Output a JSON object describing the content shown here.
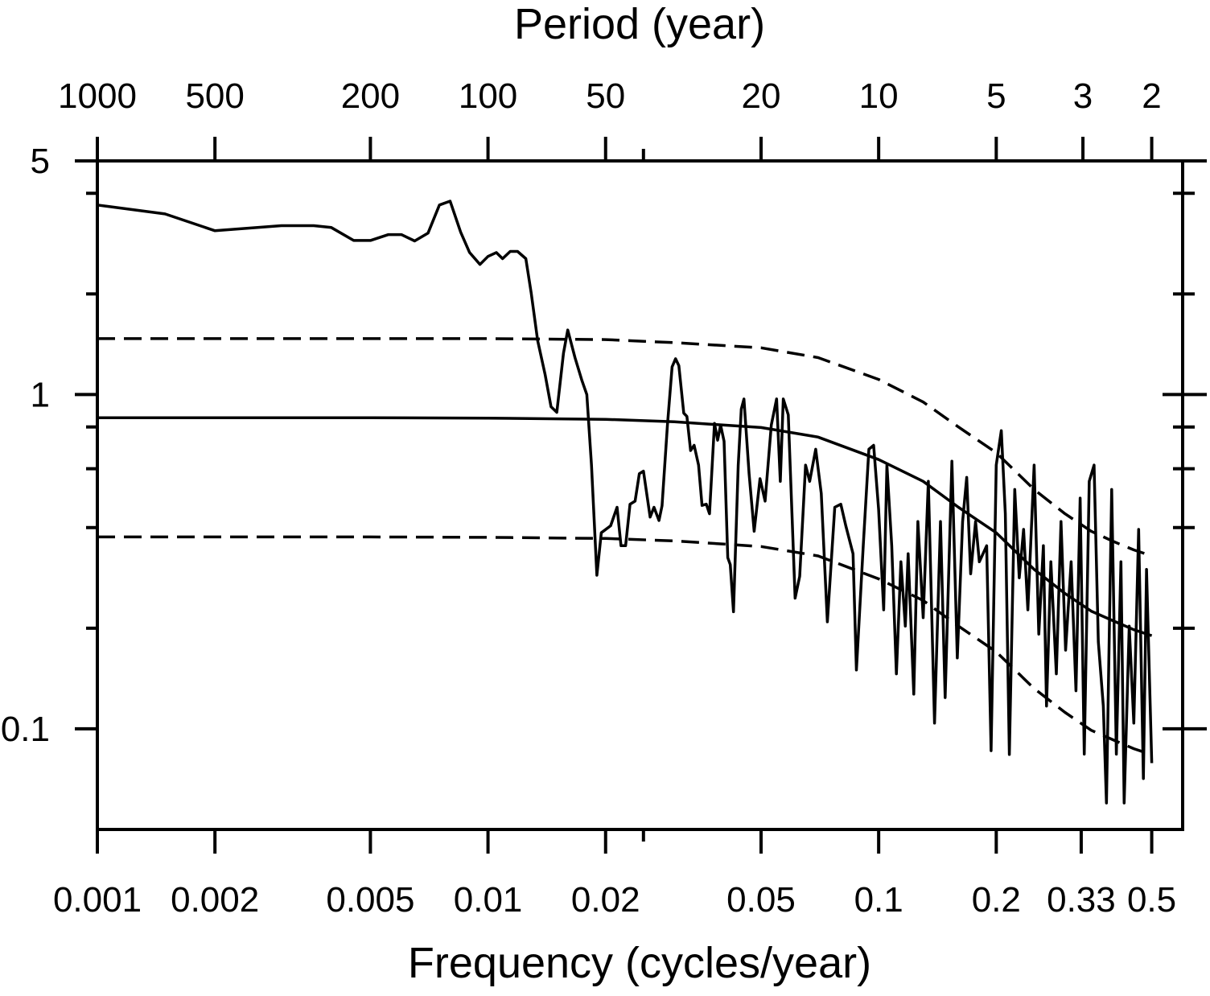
{
  "chart_data": {
    "type": "line",
    "xlabel": "Frequency (cycles/year)",
    "x2label": "Period (year)",
    "xscale": "log",
    "yscale": "log",
    "xlim": [
      0.001,
      0.6
    ],
    "ylim": [
      0.05,
      5
    ],
    "xticks": [
      0.001,
      0.002,
      0.005,
      0.01,
      0.02,
      0.05,
      0.1,
      0.2,
      0.33,
      0.5
    ],
    "xminorticks": [
      0.025
    ],
    "x2ticks": [
      1000,
      500,
      200,
      100,
      50,
      20,
      10,
      5,
      3,
      2
    ],
    "yticks": [
      5,
      1,
      0.1
    ],
    "yminorticks": [
      4,
      2,
      0.8,
      0.6,
      0.4,
      0.2
    ],
    "series": [
      {
        "color": "#000000",
        "dash": false,
        "x": [
          0.001,
          0.00149,
          0.002,
          0.00296,
          0.00358,
          0.00397,
          0.00453,
          0.005,
          0.00556,
          0.006,
          0.00649,
          0.00702,
          0.00751,
          0.008,
          0.00851,
          0.00897,
          0.00954,
          0.01,
          0.0105,
          0.0109,
          0.0114,
          0.0119,
          0.0125,
          0.0129,
          0.0134,
          0.014,
          0.0145,
          0.015,
          0.0156,
          0.016,
          0.0167,
          0.0174,
          0.0179,
          0.0184,
          0.019,
          0.0195,
          0.0206,
          0.0214,
          0.0219,
          0.0225,
          0.0231,
          0.0238,
          0.0244,
          0.025,
          0.026,
          0.0266,
          0.0274,
          0.0279,
          0.0288,
          0.0296,
          0.0302,
          0.0308,
          0.0317,
          0.0323,
          0.033,
          0.0337,
          0.0346,
          0.0353,
          0.0362,
          0.0369,
          0.038,
          0.0387,
          0.0394,
          0.0402,
          0.0411,
          0.0417,
          0.0425,
          0.0437,
          0.0445,
          0.0452,
          0.0466,
          0.048,
          0.0497,
          0.0512,
          0.0531,
          0.0548,
          0.056,
          0.057,
          0.0587,
          0.06,
          0.0611,
          0.0628,
          0.065,
          0.0666,
          0.069,
          0.0713,
          0.0739,
          0.0772,
          0.08,
          0.0824,
          0.086,
          0.0877,
          0.0913,
          0.0944,
          0.0971,
          0.1,
          0.103,
          0.105,
          0.108,
          0.111,
          0.114,
          0.117,
          0.119,
          0.123,
          0.126,
          0.13,
          0.134,
          0.139,
          0.144,
          0.148,
          0.154,
          0.159,
          0.164,
          0.168,
          0.172,
          0.177,
          0.181,
          0.189,
          0.194,
          0.2,
          0.206,
          0.211,
          0.216,
          0.223,
          0.229,
          0.235,
          0.241,
          0.25,
          0.257,
          0.264,
          0.269,
          0.276,
          0.285,
          0.293,
          0.301,
          0.311,
          0.32,
          0.328,
          0.336,
          0.346,
          0.356,
          0.365,
          0.376,
          0.383,
          0.395,
          0.406,
          0.417,
          0.425,
          0.438,
          0.45,
          0.463,
          0.476,
          0.485,
          0.5
        ],
        "values": [
          3.69,
          3.47,
          3.09,
          3.2,
          3.2,
          3.16,
          2.89,
          2.89,
          3.01,
          3.01,
          2.88,
          3.04,
          3.69,
          3.79,
          3.06,
          2.66,
          2.45,
          2.59,
          2.66,
          2.55,
          2.68,
          2.68,
          2.55,
          2.01,
          1.45,
          1.15,
          0.92,
          0.885,
          1.33,
          1.56,
          1.29,
          1.1,
          1.0,
          0.615,
          0.288,
          0.386,
          0.405,
          0.46,
          0.353,
          0.353,
          0.47,
          0.48,
          0.58,
          0.59,
          0.43,
          0.46,
          0.42,
          0.465,
          0.81,
          1.21,
          1.28,
          1.22,
          0.88,
          0.86,
          0.68,
          0.705,
          0.615,
          0.466,
          0.47,
          0.44,
          0.82,
          0.73,
          0.81,
          0.725,
          0.325,
          0.31,
          0.224,
          0.615,
          0.905,
          0.97,
          0.58,
          0.39,
          0.56,
          0.48,
          0.81,
          0.97,
          0.55,
          0.97,
          0.87,
          0.44,
          0.246,
          0.286,
          0.615,
          0.55,
          0.686,
          0.506,
          0.209,
          0.46,
          0.47,
          0.405,
          0.334,
          0.15,
          0.353,
          0.686,
          0.705,
          0.453,
          0.227,
          0.615,
          0.353,
          0.146,
          0.316,
          0.203,
          0.334,
          0.127,
          0.417,
          0.215,
          0.55,
          0.104,
          0.417,
          0.124,
          0.632,
          0.163,
          0.417,
          0.565,
          0.291,
          0.417,
          0.316,
          0.353,
          0.086,
          0.615,
          0.78,
          0.44,
          0.0838,
          0.52,
          0.283,
          0.395,
          0.227,
          0.615,
          0.192,
          0.353,
          0.117,
          0.316,
          0.146,
          0.417,
          0.172,
          0.316,
          0.13,
          0.49,
          0.084,
          0.55,
          0.615,
          0.182,
          0.117,
          0.06,
          0.52,
          0.084,
          0.316,
          0.06,
          0.203,
          0.104,
          0.395,
          0.071,
          0.3,
          0.079
        ]
      },
      {
        "color": "#000000",
        "dash": false,
        "x": [
          0.001,
          0.005,
          0.01,
          0.02,
          0.03,
          0.05,
          0.07,
          0.1,
          0.13,
          0.16,
          0.2,
          0.25,
          0.3,
          0.35,
          0.4,
          0.45,
          0.5
        ],
        "values": [
          0.852,
          0.852,
          0.85,
          0.843,
          0.829,
          0.797,
          0.746,
          0.639,
          0.55,
          0.46,
          0.386,
          0.3,
          0.254,
          0.225,
          0.21,
          0.198,
          0.19
        ]
      },
      {
        "color": "#000000",
        "dash": true,
        "x": [
          0.001,
          0.005,
          0.01,
          0.02,
          0.03,
          0.05,
          0.07,
          0.1,
          0.13,
          0.16,
          0.2,
          0.25,
          0.3,
          0.35,
          0.4,
          0.45,
          0.5
        ],
        "values": [
          1.47,
          1.47,
          1.47,
          1.46,
          1.43,
          1.38,
          1.29,
          1.11,
          0.95,
          0.8,
          0.67,
          0.52,
          0.44,
          0.39,
          0.363,
          0.343,
          0.329
        ]
      },
      {
        "color": "#000000",
        "dash": true,
        "x": [
          0.001,
          0.005,
          0.01,
          0.02,
          0.03,
          0.05,
          0.07,
          0.1,
          0.13,
          0.16,
          0.2,
          0.25,
          0.3,
          0.35,
          0.4,
          0.45,
          0.5
        ],
        "values": [
          0.375,
          0.375,
          0.374,
          0.371,
          0.365,
          0.351,
          0.329,
          0.281,
          0.242,
          0.203,
          0.17,
          0.132,
          0.112,
          0.099,
          0.0925,
          0.0872,
          0.0837
        ]
      }
    ]
  }
}
